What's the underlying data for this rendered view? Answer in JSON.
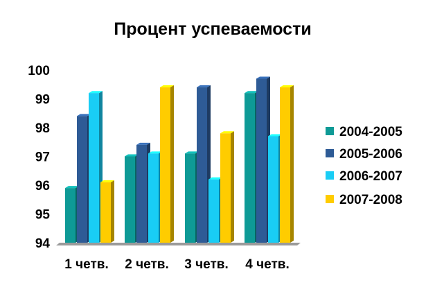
{
  "chart_data": {
    "type": "bar",
    "title": "Процент успеваемости",
    "categories": [
      "1 четв.",
      "2 четв.",
      "3 четв.",
      "4 четв."
    ],
    "series": [
      {
        "name": "2004-2005",
        "color": "#0e9a96",
        "values": [
          95.9,
          97.0,
          97.1,
          99.2
        ]
      },
      {
        "name": "2005-2006",
        "color": "#2e5b96",
        "values": [
          98.4,
          97.4,
          99.4,
          99.7
        ]
      },
      {
        "name": "2006-2007",
        "color": "#19cdf5",
        "values": [
          99.2,
          97.1,
          96.2,
          97.7
        ]
      },
      {
        "name": "2007-2008",
        "color": "#ffcc00",
        "values": [
          96.1,
          99.4,
          97.8,
          99.4
        ]
      }
    ],
    "ylim": [
      94,
      100
    ],
    "yticks": [
      "94",
      "95",
      "96",
      "97",
      "98",
      "99",
      "100"
    ],
    "grid": false,
    "legend_position": "right",
    "three_d": true
  }
}
